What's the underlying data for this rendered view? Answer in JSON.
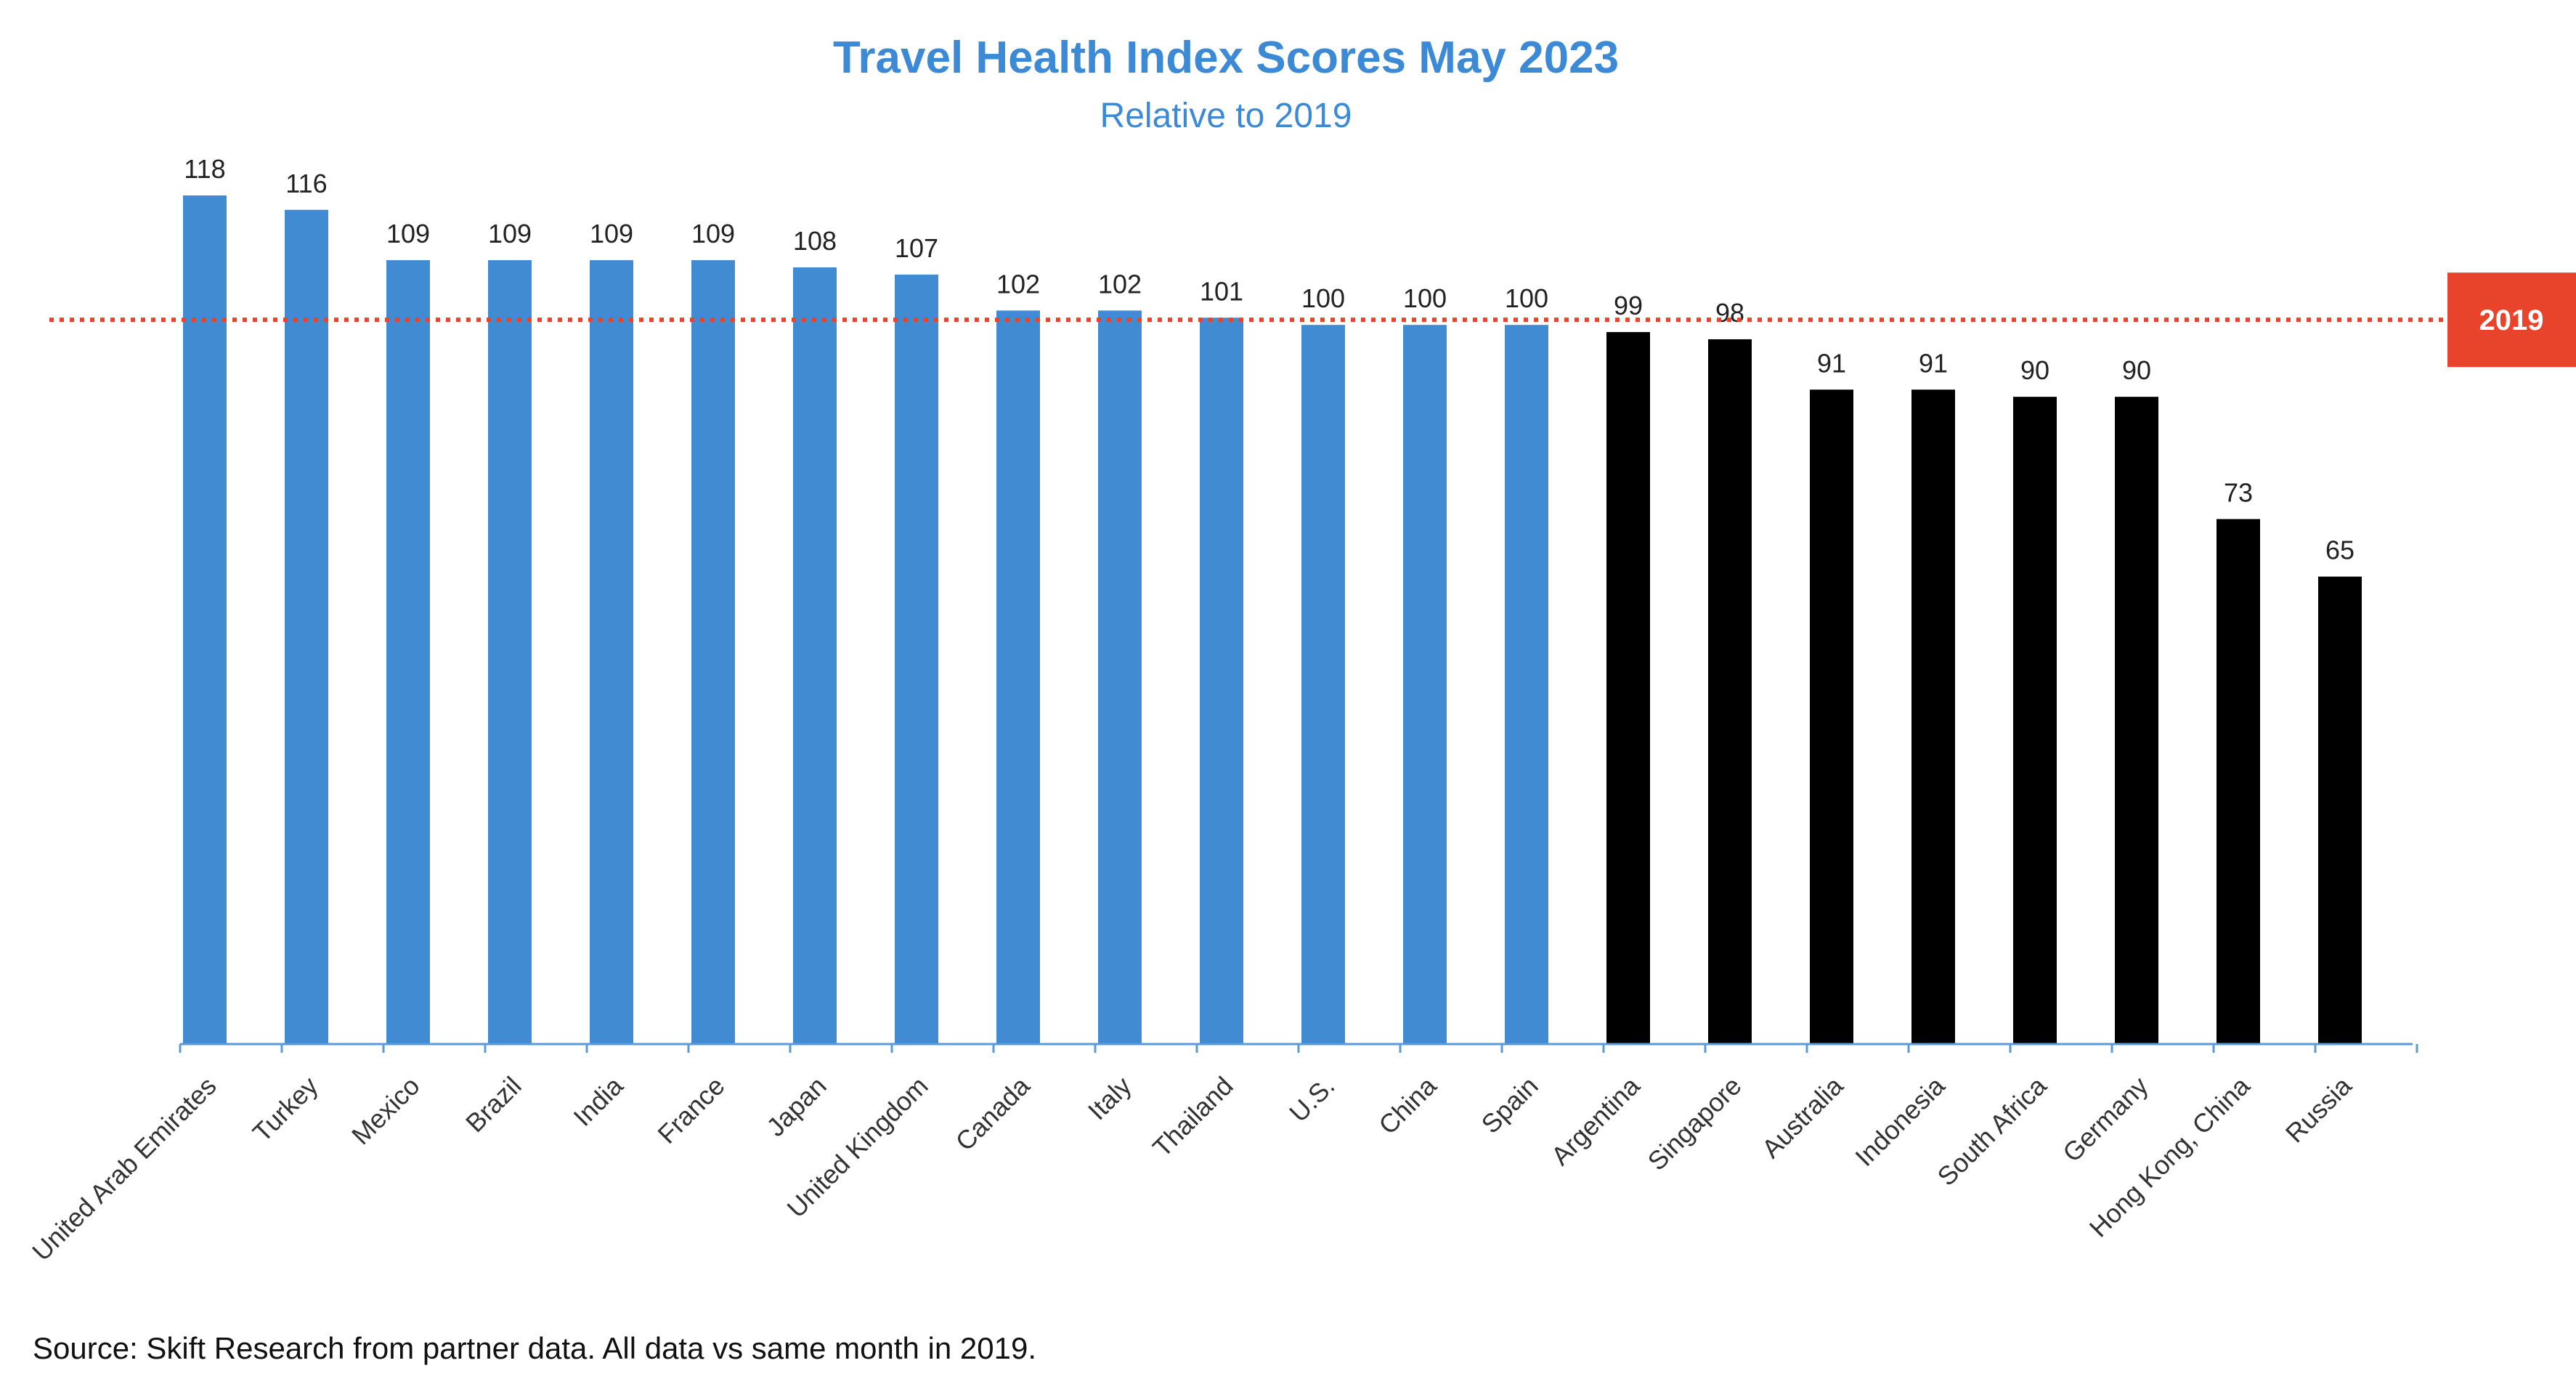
{
  "chart_data": {
    "type": "bar",
    "title": "Travel Health Index Scores May 2023",
    "subtitle": "Relative to 2019",
    "categories": [
      "United Arab Emirates",
      "Turkey",
      "Mexico",
      "Brazil",
      "India",
      "France",
      "Japan",
      "United Kingdom",
      "Canada",
      "Italy",
      "Thailand",
      "U.S.",
      "China",
      "Spain",
      "Argentina",
      "Singapore",
      "Australia",
      "Indonesia",
      "South Africa",
      "Germany",
      "Hong Kong, China",
      "Russia"
    ],
    "values": [
      118,
      116,
      109,
      109,
      109,
      109,
      108,
      107,
      102,
      102,
      101,
      100,
      100,
      100,
      99,
      98,
      91,
      91,
      90,
      90,
      73,
      65
    ],
    "bar_colors": [
      "#418bd3",
      "#418bd3",
      "#418bd3",
      "#418bd3",
      "#418bd3",
      "#418bd3",
      "#418bd3",
      "#418bd3",
      "#418bd3",
      "#418bd3",
      "#418bd3",
      "#418bd3",
      "#418bd3",
      "#418bd3",
      "#000000",
      "#000000",
      "#000000",
      "#000000",
      "#000000",
      "#000000",
      "#000000",
      "#000000"
    ],
    "reference_line": {
      "value": 100,
      "label": "2019",
      "color": "#e8442b"
    },
    "ylim": [
      0,
      118
    ],
    "xlabel": "",
    "ylabel": "",
    "grid": false,
    "legend": "none"
  },
  "source": "Source: Skift Research from partner data. All data vs same month in 2019."
}
